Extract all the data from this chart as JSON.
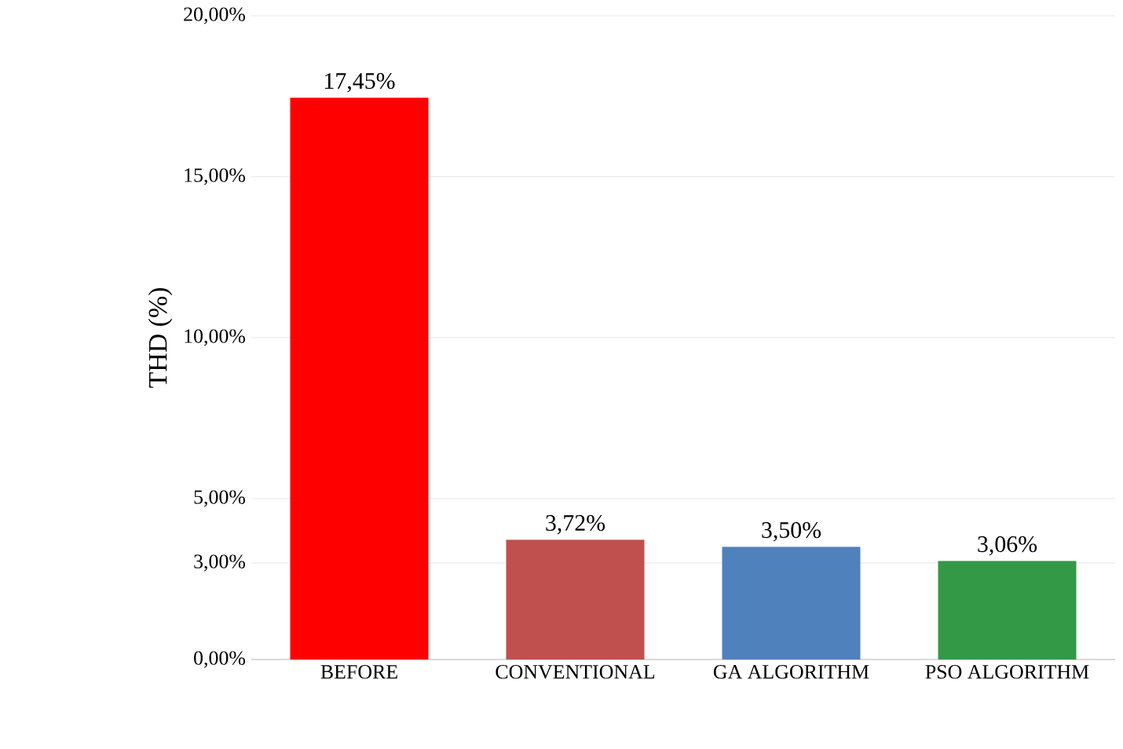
{
  "chart_data": {
    "type": "bar",
    "ylabel": "THD (%)",
    "categories": [
      "BEFORE",
      "CONVENTIONAL",
      "GA ALGORITHM",
      "PSO ALGORITHM"
    ],
    "values": [
      17.45,
      3.72,
      3.5,
      3.06
    ],
    "colors": [
      "#ff0000",
      "#c0504d",
      "#4f81bd",
      "#339947"
    ],
    "value_labels": [
      "17,45%",
      "3,72%",
      "3,50%",
      "3,06%"
    ],
    "ylim": [
      0,
      20
    ],
    "yticks": [
      {
        "value": 0,
        "label": "0,00%"
      },
      {
        "value": 3,
        "label": "3,00%"
      },
      {
        "value": 5,
        "label": "5,00%"
      },
      {
        "value": 10,
        "label": "10,00%"
      },
      {
        "value": 15,
        "label": "15,00%"
      },
      {
        "value": 20,
        "label": "20,00%"
      }
    ],
    "grid": "y"
  }
}
